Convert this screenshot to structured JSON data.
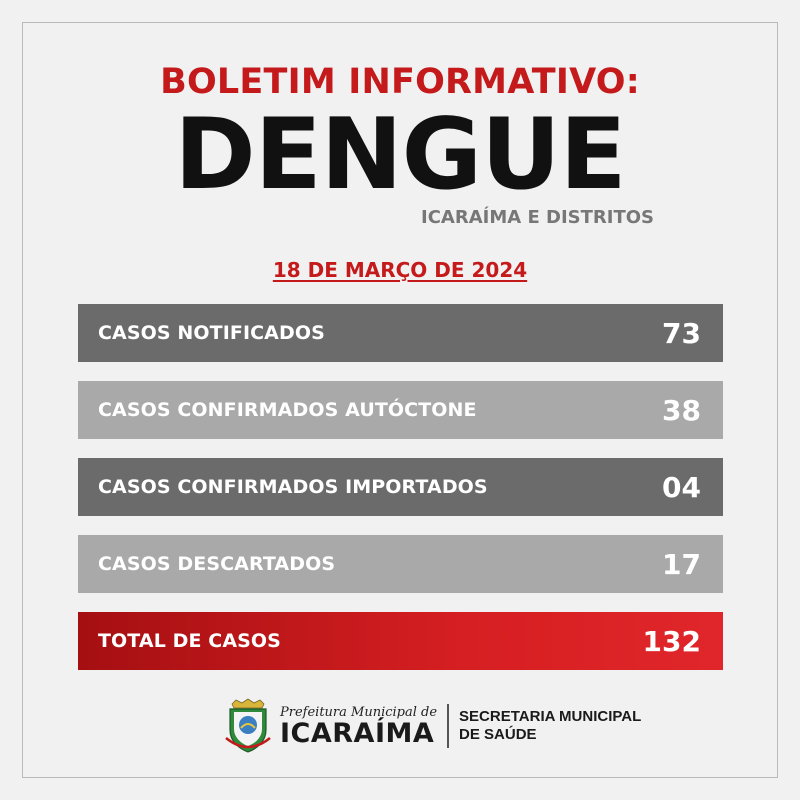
{
  "header": {
    "title_top": "BOLETIM INFORMATIVO:",
    "title_main": "DENGUE",
    "subtitle": "ICARAÍMA E DISTRITOS",
    "date": "18 DE MARÇO DE 2024"
  },
  "rows": [
    {
      "label": "CASOS NOTIFICADOS",
      "value": "73"
    },
    {
      "label": "CASOS CONFIRMADOS AUTÓCTONE",
      "value": "38"
    },
    {
      "label": "CASOS CONFIRMADOS IMPORTADOS",
      "value": "04"
    },
    {
      "label": "CASOS DESCARTADOS",
      "value": "17"
    },
    {
      "label": "TOTAL DE CASOS",
      "value": "132"
    }
  ],
  "footer": {
    "pref_script": "Prefeitura Municipal de",
    "pref_city": "ICARAÍMA",
    "sec_line1": "SECRETARIA MUNICIPAL",
    "sec_line2": "DE SAÚDE"
  },
  "colors": {
    "accent_red": "#c51a1b",
    "row_dark": "#6b6b6b",
    "row_light": "#a9a9a9"
  },
  "icons": {
    "logo": "municipal-coat-of-arms-icon"
  }
}
